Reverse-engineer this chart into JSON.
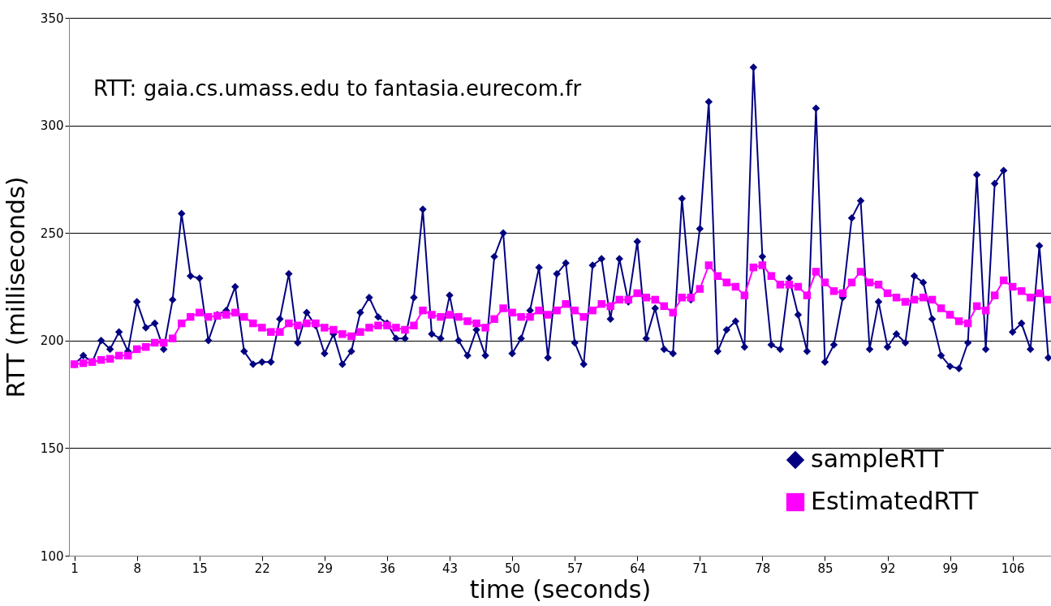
{
  "chart_data": {
    "type": "line",
    "xlabel": "time (seconds)",
    "ylabel": "RTT (milliseconds)",
    "annotations": [
      "RTT: gaia.cs.umass.edu to fantasia.eurecom.fr"
    ],
    "x": [
      1,
      2,
      3,
      4,
      5,
      6,
      7,
      8,
      9,
      10,
      11,
      12,
      13,
      14,
      15,
      16,
      17,
      18,
      19,
      20,
      21,
      22,
      23,
      24,
      25,
      26,
      27,
      28,
      29,
      30,
      31,
      32,
      33,
      34,
      35,
      36,
      37,
      38,
      39,
      40,
      41,
      42,
      43,
      44,
      45,
      46,
      47,
      48,
      49,
      50,
      51,
      52,
      53,
      54,
      55,
      56,
      57,
      58,
      59,
      60,
      61,
      62,
      63,
      64,
      65,
      66,
      67,
      68,
      69,
      70,
      71,
      72,
      73,
      74,
      75,
      76,
      77,
      78,
      79,
      80,
      81,
      82,
      83,
      84,
      85,
      86,
      87,
      88,
      89,
      90,
      91,
      92,
      93,
      94,
      95,
      96,
      97,
      98,
      99,
      100,
      101,
      102,
      103,
      104,
      105,
      106,
      107,
      108,
      109,
      110
    ],
    "series": [
      {
        "name": "sampleRTT",
        "color": "#000080",
        "marker": "diamond",
        "values": [
          189,
          193,
          190,
          200,
          196,
          204,
          195,
          218,
          206,
          208,
          196,
          219,
          259,
          230,
          229,
          200,
          212,
          214,
          225,
          195,
          189,
          190,
          190,
          210,
          231,
          199,
          213,
          207,
          194,
          203,
          189,
          195,
          213,
          220,
          211,
          208,
          201,
          201,
          220,
          261,
          203,
          201,
          221,
          200,
          193,
          205,
          193,
          239,
          250,
          194,
          201,
          214,
          234,
          192,
          231,
          236,
          199,
          189,
          235,
          238,
          210,
          238,
          218,
          246,
          201,
          215,
          196,
          194,
          266,
          219,
          252,
          311,
          195,
          205,
          209,
          197,
          327,
          239,
          198,
          196,
          229,
          212,
          195,
          308,
          190,
          198,
          220,
          257,
          265,
          196,
          218,
          197,
          203,
          199,
          230,
          227,
          210,
          193,
          188,
          187,
          199,
          277,
          196,
          273,
          279,
          204,
          208,
          196,
          244,
          192
        ]
      },
      {
        "name": "EstimatedRTT",
        "color": "#ff00ff",
        "marker": "square",
        "values": [
          189,
          189.5,
          190,
          191,
          191.5,
          193,
          193,
          196,
          197,
          199,
          199,
          201,
          208,
          211,
          213,
          211,
          211.5,
          212,
          213,
          211,
          208,
          206,
          204,
          204,
          208,
          207,
          208,
          208,
          206,
          205,
          203,
          202,
          204,
          206,
          207,
          207,
          206,
          205,
          207,
          214,
          212,
          211,
          212,
          211,
          209,
          208,
          206,
          210,
          215,
          213,
          211,
          211,
          214,
          212,
          214,
          217,
          214,
          211,
          214,
          217,
          216,
          219,
          219,
          222,
          220,
          219,
          216,
          213,
          220,
          220,
          224,
          235,
          230,
          227,
          225,
          221,
          234,
          235,
          230,
          226,
          226,
          225,
          221,
          232,
          227,
          223,
          222,
          227,
          232,
          227,
          226,
          222,
          220,
          218,
          219,
          220,
          219,
          215,
          212,
          209,
          208,
          216,
          214,
          221,
          228,
          225,
          223,
          220,
          222,
          219
        ]
      }
    ],
    "xlim": [
      0.4,
      110.3
    ],
    "xticks": [
      1,
      8,
      15,
      22,
      29,
      36,
      43,
      50,
      57,
      64,
      71,
      78,
      85,
      92,
      99,
      106
    ],
    "ylim": [
      100,
      350
    ],
    "yticks": [
      100,
      150,
      200,
      250,
      300,
      350
    ],
    "grid": "y",
    "legend": "bottom right",
    "line_style": "solid"
  }
}
